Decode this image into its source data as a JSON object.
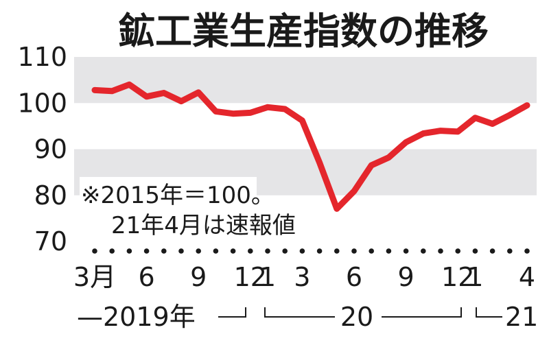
{
  "chart_data": {
    "type": "line",
    "title": "鉱工業生産指数の推移",
    "ylim": [
      70,
      110
    ],
    "y_ticks": [
      "110",
      "100",
      "90",
      "80",
      "70"
    ],
    "grid": "alternating gray bands",
    "line_color": "#e4262c",
    "band_color": "#e5e5e7",
    "x_tick_labels": [
      {
        "label": "3月",
        "index": 0
      },
      {
        "label": "6",
        "index": 3
      },
      {
        "label": "9",
        "index": 6
      },
      {
        "label": "12",
        "index": 9
      },
      {
        "label": "1",
        "index": 10
      },
      {
        "label": "3",
        "index": 12
      },
      {
        "label": "6",
        "index": 15
      },
      {
        "label": "9",
        "index": 18
      },
      {
        "label": "12",
        "index": 21
      },
      {
        "label": "1",
        "index": 22
      },
      {
        "label": "4",
        "index": 25
      }
    ],
    "x": [
      "2019-03",
      "2019-04",
      "2019-05",
      "2019-06",
      "2019-07",
      "2019-08",
      "2019-09",
      "2019-10",
      "2019-11",
      "2019-12",
      "2020-01",
      "2020-02",
      "2020-03",
      "2020-04",
      "2020-05",
      "2020-06",
      "2020-07",
      "2020-08",
      "2020-09",
      "2020-10",
      "2020-11",
      "2020-12",
      "2021-01",
      "2021-02",
      "2021-03",
      "2021-04"
    ],
    "values": [
      102.8,
      102.6,
      104.0,
      101.4,
      102.2,
      100.4,
      102.3,
      98.2,
      97.7,
      97.9,
      99.1,
      98.7,
      96.2,
      87.1,
      77.1,
      80.9,
      86.5,
      88.2,
      91.5,
      93.4,
      94.0,
      93.8,
      96.8,
      95.5,
      97.4,
      99.5
    ],
    "year_groups": [
      {
        "label": "—2019年",
        "from": 0,
        "to": 9
      },
      {
        "label": "20",
        "from": 10,
        "to": 21
      },
      {
        "label": "21",
        "from": 22,
        "to": 25
      }
    ],
    "note_lines": [
      "※2015年＝100。",
      "21年4月は速報値"
    ]
  }
}
